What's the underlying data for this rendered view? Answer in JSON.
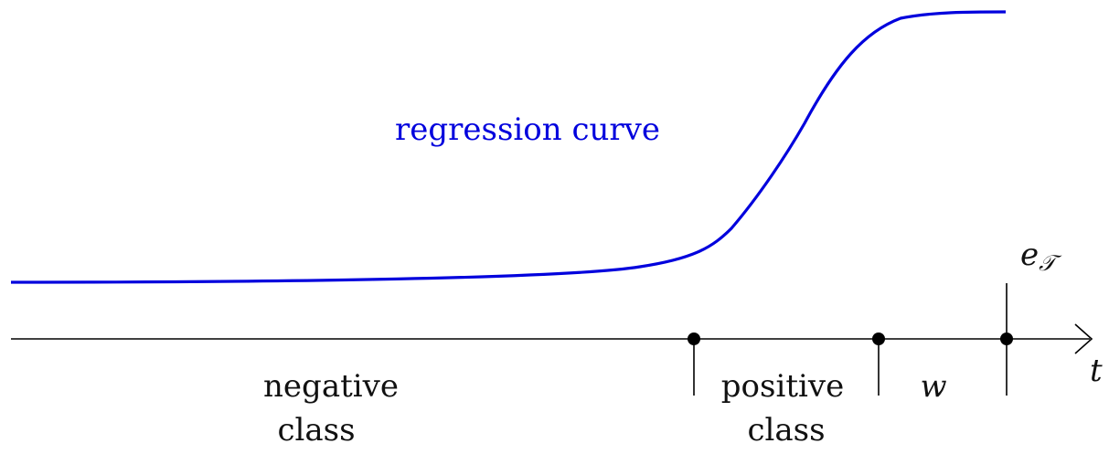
{
  "diagram": {
    "curve_label": "regression curve",
    "axis_label": "t",
    "negative_class": [
      "negative",
      "class"
    ],
    "positive_class": [
      "positive",
      "class"
    ],
    "window_label": "w",
    "event_label": {
      "base": "e",
      "subscript": "𝒯"
    }
  },
  "colors": {
    "curve": "#0000dd",
    "axis": "#000000"
  }
}
